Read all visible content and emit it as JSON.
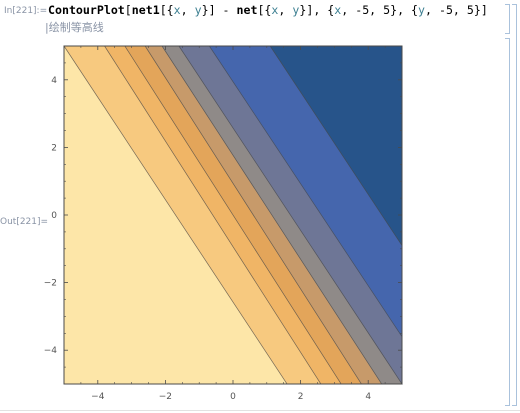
{
  "cell": {
    "in_label": "In[221]:=",
    "out_label": "Out[221]=",
    "code": {
      "fn1": "ContourPlot",
      "p1": "[",
      "fn2": "net1",
      "p2": "[{",
      "x1": "x",
      "c1": ", ",
      "y1": "y",
      "p3": "}] - ",
      "fn3": "net",
      "p4": "[{",
      "x2": "x",
      "c2": ", ",
      "y2": "y",
      "p5": "}], {",
      "x3": "x",
      "p6": ", -5, 5}, {",
      "y3": "y",
      "p7": ", -5, 5}]"
    },
    "annotation": "|绘制等高线"
  },
  "chart_data": {
    "type": "contour",
    "title": "",
    "xlabel": "",
    "ylabel": "",
    "xlim": [
      -5,
      5
    ],
    "ylim": [
      -5,
      5
    ],
    "x_ticks": [
      -4,
      -2,
      0,
      2,
      4
    ],
    "y_ticks": [
      -4,
      -2,
      0,
      2,
      4
    ],
    "x_tick_labels": [
      "−4",
      "−2",
      "0",
      "2",
      "4"
    ],
    "y_tick_labels": [
      "−4",
      "−2",
      "0",
      "2",
      "4"
    ],
    "grid": false,
    "legend": "none",
    "contour_direction": "level lines run diagonally; value increases toward upper-right",
    "levels": [
      {
        "band": 1,
        "color": "#fde6a8",
        "upper_edge_x_at_y_minus5": 1.6,
        "upper_edge_x_at_y_5": -5.0
      },
      {
        "band": 2,
        "color": "#f7c97f",
        "upper_edge_x_at_y_minus5": 2.6,
        "upper_edge_x_at_y_5": -3.8
      },
      {
        "band": 3,
        "color": "#f0b566",
        "upper_edge_x_at_y_minus5": 3.2,
        "upper_edge_x_at_y_5": -3.2
      },
      {
        "band": 4,
        "color": "#e3a55a",
        "upper_edge_x_at_y_minus5": 3.8,
        "upper_edge_x_at_y_5": -2.6
      },
      {
        "band": 5,
        "color": "#c79a6a",
        "upper_edge_x_at_y_minus5": 4.4,
        "upper_edge_x_at_y_5": -2.1
      },
      {
        "band": 6,
        "color": "#8f8a88",
        "upper_edge_x_at_y_minus5": 5.0,
        "upper_edge_x_at_y_5": -1.6
      },
      {
        "band": 7,
        "color": "#6e7696",
        "upper_edge_x_at_y_minus5": 5.0,
        "upper_edge_x_at_y_5": -0.7,
        "upper_edge_y_at_x_5": -3.6
      },
      {
        "band": 8,
        "color": "#4566ad",
        "upper_edge_x_at_y_minus5": 5.0,
        "upper_edge_x_at_y_5": 1.1,
        "upper_edge_y_at_x_5": -0.9
      },
      {
        "band": 9,
        "color": "#27548a"
      }
    ],
    "frame_color": "#4a4a4a"
  }
}
